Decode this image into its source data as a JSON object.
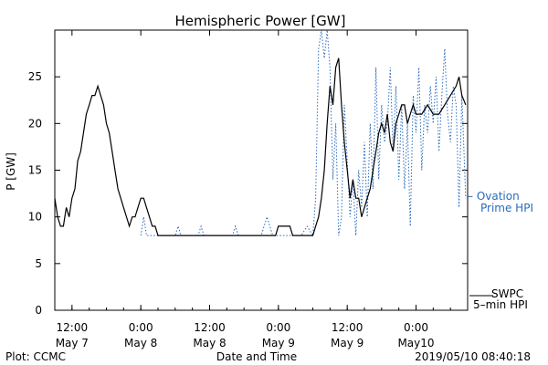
{
  "chart_data": {
    "type": "line",
    "title": "Hemispheric Power [GW]",
    "xlabel": "Date and Time",
    "ylabel": "P [GW]",
    "ylim": [
      0,
      30
    ],
    "xlim_hours_note": "",
    "y_ticks": [
      0,
      5,
      10,
      15,
      20,
      25
    ],
    "x_ticks": [
      {
        "t": "2019-05-07 12:00",
        "time": "12:00",
        "date": "May 7"
      },
      {
        "t": "2019-05-08 00:00",
        "time": "0:00",
        "date": "May 8"
      },
      {
        "t": "2019-05-08 12:00",
        "time": "12:00",
        "date": "May 8"
      },
      {
        "t": "2019-05-09 00:00",
        "time": "0:00",
        "date": "May 9"
      },
      {
        "t": "2019-05-09 12:00",
        "time": "12:00",
        "date": "May 9"
      },
      {
        "t": "2019-05-10 00:00",
        "time": "0:00",
        "date": "May10"
      }
    ],
    "x_range": [
      "2019-05-07 09:00",
      "2019-05-10 09:00"
    ],
    "grid": false,
    "series": [
      {
        "name": "SWPC 5-min HPI",
        "color": "#000000",
        "style": "solid",
        "points": [
          [
            "2019-05-07 09:00",
            12
          ],
          [
            "2019-05-07 09:30",
            10
          ],
          [
            "2019-05-07 10:00",
            9
          ],
          [
            "2019-05-07 10:30",
            9
          ],
          [
            "2019-05-07 11:00",
            11
          ],
          [
            "2019-05-07 11:30",
            10
          ],
          [
            "2019-05-07 12:00",
            12
          ],
          [
            "2019-05-07 12:30",
            13
          ],
          [
            "2019-05-07 13:00",
            16
          ],
          [
            "2019-05-07 13:30",
            17
          ],
          [
            "2019-05-07 14:00",
            19
          ],
          [
            "2019-05-07 14:30",
            21
          ],
          [
            "2019-05-07 15:00",
            22
          ],
          [
            "2019-05-07 15:30",
            23
          ],
          [
            "2019-05-07 16:00",
            23
          ],
          [
            "2019-05-07 16:30",
            24
          ],
          [
            "2019-05-07 17:00",
            23
          ],
          [
            "2019-05-07 17:30",
            22
          ],
          [
            "2019-05-07 18:00",
            20
          ],
          [
            "2019-05-07 18:30",
            19
          ],
          [
            "2019-05-07 19:00",
            17
          ],
          [
            "2019-05-07 19:30",
            15
          ],
          [
            "2019-05-07 20:00",
            13
          ],
          [
            "2019-05-07 20:30",
            12
          ],
          [
            "2019-05-07 21:00",
            11
          ],
          [
            "2019-05-07 21:30",
            10
          ],
          [
            "2019-05-07 22:00",
            9
          ],
          [
            "2019-05-07 22:30",
            10
          ],
          [
            "2019-05-07 23:00",
            10
          ],
          [
            "2019-05-07 23:30",
            11
          ],
          [
            "2019-05-08 00:00",
            12
          ],
          [
            "2019-05-08 00:30",
            12
          ],
          [
            "2019-05-08 01:00",
            11
          ],
          [
            "2019-05-08 01:30",
            10
          ],
          [
            "2019-05-08 02:00",
            9
          ],
          [
            "2019-05-08 02:30",
            9
          ],
          [
            "2019-05-08 03:00",
            8
          ],
          [
            "2019-05-08 06:00",
            8
          ],
          [
            "2019-05-08 12:00",
            8
          ],
          [
            "2019-05-08 18:00",
            8
          ],
          [
            "2019-05-08 23:30",
            8
          ],
          [
            "2019-05-09 00:00",
            9
          ],
          [
            "2019-05-09 02:00",
            9
          ],
          [
            "2019-05-09 02:30",
            8
          ],
          [
            "2019-05-09 05:30",
            8
          ],
          [
            "2019-05-09 06:00",
            8
          ],
          [
            "2019-05-09 06:30",
            9
          ],
          [
            "2019-05-09 07:00",
            10
          ],
          [
            "2019-05-09 07:30",
            12
          ],
          [
            "2019-05-09 08:00",
            15
          ],
          [
            "2019-05-09 08:30",
            20
          ],
          [
            "2019-05-09 09:00",
            24
          ],
          [
            "2019-05-09 09:30",
            22
          ],
          [
            "2019-05-09 10:00",
            26
          ],
          [
            "2019-05-09 10:30",
            27
          ],
          [
            "2019-05-09 11:00",
            22
          ],
          [
            "2019-05-09 11:30",
            18
          ],
          [
            "2019-05-09 12:00",
            15
          ],
          [
            "2019-05-09 12:30",
            12
          ],
          [
            "2019-05-09 13:00",
            14
          ],
          [
            "2019-05-09 13:30",
            12
          ],
          [
            "2019-05-09 14:00",
            12
          ],
          [
            "2019-05-09 14:30",
            10
          ],
          [
            "2019-05-09 15:00",
            11
          ],
          [
            "2019-05-09 15:30",
            12
          ],
          [
            "2019-05-09 16:00",
            13
          ],
          [
            "2019-05-09 16:30",
            15
          ],
          [
            "2019-05-09 17:00",
            17
          ],
          [
            "2019-05-09 17:30",
            19
          ],
          [
            "2019-05-09 18:00",
            20
          ],
          [
            "2019-05-09 18:30",
            19
          ],
          [
            "2019-05-09 19:00",
            21
          ],
          [
            "2019-05-09 19:30",
            18
          ],
          [
            "2019-05-09 20:00",
            17
          ],
          [
            "2019-05-09 20:30",
            20
          ],
          [
            "2019-05-09 21:00",
            21
          ],
          [
            "2019-05-09 21:30",
            22
          ],
          [
            "2019-05-09 22:00",
            22
          ],
          [
            "2019-05-09 22:30",
            20
          ],
          [
            "2019-05-09 23:00",
            21
          ],
          [
            "2019-05-09 23:30",
            22
          ],
          [
            "2019-05-10 00:00",
            21
          ],
          [
            "2019-05-10 01:00",
            21
          ],
          [
            "2019-05-10 02:00",
            22
          ],
          [
            "2019-05-10 03:00",
            21
          ],
          [
            "2019-05-10 04:00",
            21
          ],
          [
            "2019-05-10 05:00",
            22
          ],
          [
            "2019-05-10 06:00",
            23
          ],
          [
            "2019-05-10 07:00",
            24
          ],
          [
            "2019-05-10 07:30",
            25
          ],
          [
            "2019-05-10 08:00",
            23
          ],
          [
            "2019-05-10 08:40",
            22
          ]
        ]
      },
      {
        "name": "Ovation Prime HPI",
        "color": "#2a6bbd",
        "style": "dotted",
        "points": [
          [
            "2019-05-08 00:00",
            8
          ],
          [
            "2019-05-08 00:30",
            10
          ],
          [
            "2019-05-08 01:00",
            8
          ],
          [
            "2019-05-08 06:00",
            8
          ],
          [
            "2019-05-08 06:30",
            9
          ],
          [
            "2019-05-08 07:00",
            8
          ],
          [
            "2019-05-08 10:00",
            8
          ],
          [
            "2019-05-08 10:30",
            9
          ],
          [
            "2019-05-08 11:00",
            8
          ],
          [
            "2019-05-08 16:00",
            8
          ],
          [
            "2019-05-08 16:30",
            9
          ],
          [
            "2019-05-08 17:00",
            8
          ],
          [
            "2019-05-08 21:00",
            8
          ],
          [
            "2019-05-08 22:00",
            10
          ],
          [
            "2019-05-08 23:00",
            8
          ],
          [
            "2019-05-09 04:00",
            8
          ],
          [
            "2019-05-09 05:00",
            9
          ],
          [
            "2019-05-09 06:00",
            8
          ],
          [
            "2019-05-09 06:30",
            12
          ],
          [
            "2019-05-09 07:00",
            28
          ],
          [
            "2019-05-09 07:30",
            30
          ],
          [
            "2019-05-09 08:00",
            27
          ],
          [
            "2019-05-09 08:30",
            30
          ],
          [
            "2019-05-09 09:00",
            26
          ],
          [
            "2019-05-09 09:30",
            14
          ],
          [
            "2019-05-09 10:00",
            20
          ],
          [
            "2019-05-09 10:30",
            8
          ],
          [
            "2019-05-09 11:00",
            10
          ],
          [
            "2019-05-09 11:30",
            22
          ],
          [
            "2019-05-09 12:00",
            16
          ],
          [
            "2019-05-09 12:30",
            10
          ],
          [
            "2019-05-09 13:00",
            14
          ],
          [
            "2019-05-09 13:30",
            8
          ],
          [
            "2019-05-09 14:00",
            15
          ],
          [
            "2019-05-09 14:30",
            11
          ],
          [
            "2019-05-09 15:00",
            18
          ],
          [
            "2019-05-09 15:30",
            10
          ],
          [
            "2019-05-09 16:00",
            20
          ],
          [
            "2019-05-09 16:30",
            13
          ],
          [
            "2019-05-09 17:00",
            26
          ],
          [
            "2019-05-09 17:30",
            14
          ],
          [
            "2019-05-09 18:00",
            22
          ],
          [
            "2019-05-09 18:30",
            18
          ],
          [
            "2019-05-09 19:00",
            20
          ],
          [
            "2019-05-09 19:30",
            26
          ],
          [
            "2019-05-09 20:00",
            17
          ],
          [
            "2019-05-09 20:30",
            24
          ],
          [
            "2019-05-09 21:00",
            14
          ],
          [
            "2019-05-09 21:30",
            22
          ],
          [
            "2019-05-09 22:00",
            13
          ],
          [
            "2019-05-09 22:30",
            20
          ],
          [
            "2019-05-09 23:00",
            9
          ],
          [
            "2019-05-09 23:30",
            23
          ],
          [
            "2019-05-10 00:00",
            19
          ],
          [
            "2019-05-10 00:30",
            26
          ],
          [
            "2019-05-10 01:00",
            15
          ],
          [
            "2019-05-10 01:30",
            22
          ],
          [
            "2019-05-10 02:00",
            19
          ],
          [
            "2019-05-10 02:30",
            24
          ],
          [
            "2019-05-10 03:00",
            20
          ],
          [
            "2019-05-10 03:30",
            25
          ],
          [
            "2019-05-10 04:00",
            17
          ],
          [
            "2019-05-10 04:30",
            23
          ],
          [
            "2019-05-10 05:00",
            28
          ],
          [
            "2019-05-10 05:30",
            21
          ],
          [
            "2019-05-10 06:00",
            18
          ],
          [
            "2019-05-10 06:30",
            24
          ],
          [
            "2019-05-10 07:00",
            22
          ],
          [
            "2019-05-10 07:30",
            11
          ],
          [
            "2019-05-10 08:00",
            23
          ],
          [
            "2019-05-10 08:40",
            12
          ]
        ]
      }
    ],
    "legend": {
      "ovation": [
        "– Ovation",
        "Prime HPI"
      ],
      "swpc": [
        "SWPC",
        "5–min HPI"
      ]
    }
  },
  "footer": {
    "plot_credit": "Plot: CCMC",
    "timestamp": "2019/05/10 08:40:18"
  }
}
